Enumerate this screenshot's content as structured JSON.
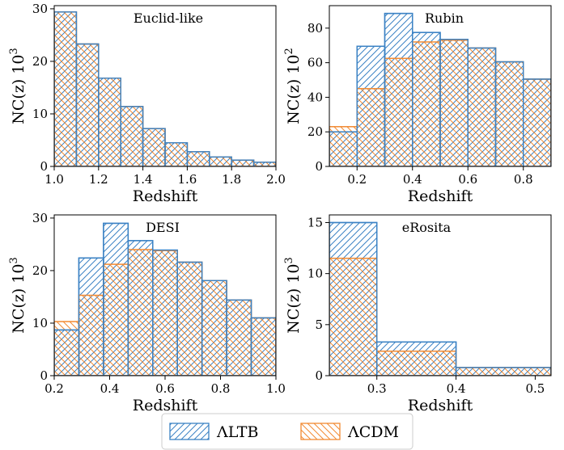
{
  "colors": {
    "ltb": "#3b82c4",
    "lcdm": "#f28a32"
  },
  "legend": {
    "ltb_label": "ΛLTB",
    "lcdm_label": "ΛCDM"
  },
  "chart_data": [
    {
      "type": "bar",
      "title": "Euclid-like",
      "xlabel": "Redshift",
      "ylabel": "NC(z) 10",
      "ylabel_exp": "3",
      "xlim": [
        1.0,
        2.0
      ],
      "ylim": [
        0,
        30.6
      ],
      "xticks": [
        1.0,
        1.2,
        1.4,
        1.6,
        1.8,
        2.0
      ],
      "xtick_labels": [
        "1.0",
        "1.2",
        "1.4",
        "1.6",
        "1.8",
        "2.0"
      ],
      "yticks": [
        0,
        10,
        20,
        30
      ],
      "ytick_labels": [
        "0",
        "10",
        "20",
        "30"
      ],
      "bin_edges": [
        1.0,
        1.1,
        1.2,
        1.3,
        1.4,
        1.5,
        1.6,
        1.7,
        1.8,
        1.9,
        2.0
      ],
      "series": [
        {
          "name": "ΛLTB",
          "values": [
            29.4,
            23.3,
            16.8,
            11.4,
            7.2,
            4.5,
            2.8,
            1.8,
            1.2,
            0.8
          ]
        },
        {
          "name": "ΛCDM",
          "values": [
            29.4,
            23.3,
            16.8,
            11.4,
            7.2,
            4.5,
            2.8,
            1.8,
            1.2,
            0.8
          ]
        }
      ]
    },
    {
      "type": "bar",
      "title": "Rubin",
      "xlabel": "Redshift",
      "ylabel": "NC(z) 10",
      "ylabel_exp": "2",
      "xlim": [
        0.1,
        0.9
      ],
      "ylim": [
        0,
        93
      ],
      "xticks": [
        0.2,
        0.4,
        0.6,
        0.8
      ],
      "xtick_labels": [
        "0.2",
        "0.4",
        "0.6",
        "0.8"
      ],
      "yticks": [
        0,
        20,
        40,
        60,
        80
      ],
      "ytick_labels": [
        "0",
        "20",
        "40",
        "60",
        "80"
      ],
      "bin_edges": [
        0.1,
        0.2,
        0.3,
        0.4,
        0.5,
        0.6,
        0.7,
        0.8,
        0.9
      ],
      "series": [
        {
          "name": "ΛLTB",
          "values": [
            20,
            69.5,
            88.5,
            77.5,
            73.5,
            68.5,
            60.5,
            50.5
          ]
        },
        {
          "name": "ΛCDM",
          "values": [
            23,
            45,
            62.5,
            72,
            73,
            68.5,
            60.5,
            50.5
          ]
        }
      ]
    },
    {
      "type": "bar",
      "title": "DESI",
      "xlabel": "Redshift",
      "ylabel": "NC(z) 10",
      "ylabel_exp": "3",
      "xlim": [
        0.2,
        1.0
      ],
      "ylim": [
        0,
        30.6
      ],
      "xticks": [
        0.2,
        0.4,
        0.6,
        0.8,
        1.0
      ],
      "xtick_labels": [
        "0.2",
        "0.4",
        "0.6",
        "0.8",
        "1.0"
      ],
      "yticks": [
        0,
        10,
        20,
        30
      ],
      "ytick_labels": [
        "0",
        "10",
        "20",
        "30"
      ],
      "bin_edges": [
        0.2,
        0.2889,
        0.3778,
        0.4667,
        0.5556,
        0.6444,
        0.7333,
        0.8222,
        0.9111,
        1.0
      ],
      "series": [
        {
          "name": "ΛLTB",
          "values": [
            8.7,
            22.4,
            29.0,
            25.7,
            23.9,
            21.6,
            18.1,
            14.4,
            11.0
          ]
        },
        {
          "name": "ΛCDM",
          "values": [
            10.3,
            15.3,
            21.2,
            24.0,
            23.8,
            21.6,
            18.1,
            14.4,
            11.0
          ]
        }
      ]
    },
    {
      "type": "bar",
      "title": "eRosita",
      "xlabel": "Redshift",
      "ylabel": "NC(z) 10",
      "ylabel_exp": "3",
      "xlim": [
        0.24,
        0.52
      ],
      "ylim": [
        0,
        15.75
      ],
      "xticks": [
        0.3,
        0.4,
        0.5
      ],
      "xtick_labels": [
        "0.3",
        "0.4",
        "0.5"
      ],
      "yticks": [
        0,
        5,
        10,
        15
      ],
      "ytick_labels": [
        "0",
        "5",
        "10",
        "15"
      ],
      "bin_edges": [
        0.24,
        0.3,
        0.4,
        0.52
      ],
      "series": [
        {
          "name": "ΛLTB",
          "values": [
            15.0,
            3.3,
            0.8
          ]
        },
        {
          "name": "ΛCDM",
          "values": [
            11.5,
            2.4,
            0.8
          ]
        }
      ]
    }
  ]
}
